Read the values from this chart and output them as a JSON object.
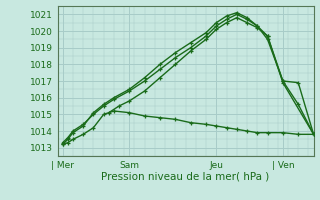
{
  "title": "",
  "xlabel": "Pression niveau de la mer( hPa )",
  "ylim": [
    1012.5,
    1021.5
  ],
  "xlim": [
    -1,
    49
  ],
  "yticks": [
    1013,
    1014,
    1015,
    1016,
    1017,
    1018,
    1019,
    1020,
    1021
  ],
  "xtick_positions": [
    0,
    13,
    30,
    43
  ],
  "xtick_labels": [
    "| Mer",
    "Sam",
    "Jeu",
    "| Ven"
  ],
  "bg_color": "#c8e8e0",
  "grid_color": "#a8ccc8",
  "line_color": "#1a6b1a",
  "spine_color": "#557755",
  "lines": [
    {
      "x": [
        0,
        1,
        2,
        4,
        6,
        8,
        10,
        13,
        16,
        19,
        22,
        25,
        28,
        30,
        32,
        34,
        36,
        38,
        40,
        43,
        46,
        49
      ],
      "y": [
        1013.2,
        1013.5,
        1013.9,
        1014.3,
        1015.1,
        1015.6,
        1016.0,
        1016.5,
        1017.2,
        1018.0,
        1018.7,
        1019.3,
        1019.9,
        1020.5,
        1020.9,
        1021.1,
        1020.8,
        1020.3,
        1019.5,
        1017.0,
        1015.6,
        1013.8
      ]
    },
    {
      "x": [
        0,
        1,
        2,
        4,
        6,
        8,
        10,
        13,
        16,
        19,
        22,
        25,
        28,
        30,
        32,
        34,
        36,
        38,
        40,
        43,
        46,
        49
      ],
      "y": [
        1013.3,
        1013.6,
        1014.0,
        1014.4,
        1015.0,
        1015.5,
        1015.9,
        1016.4,
        1017.0,
        1017.7,
        1018.4,
        1019.0,
        1019.7,
        1020.3,
        1020.7,
        1021.0,
        1020.7,
        1020.3,
        1019.7,
        1017.0,
        1016.9,
        1013.8
      ]
    },
    {
      "x": [
        9,
        11,
        13,
        16,
        19,
        22,
        25,
        28,
        30,
        32,
        34,
        36,
        38,
        40,
        43,
        49
      ],
      "y": [
        1015.1,
        1015.5,
        1015.8,
        1016.4,
        1017.2,
        1018.0,
        1018.8,
        1019.5,
        1020.1,
        1020.5,
        1020.8,
        1020.5,
        1020.2,
        1019.7,
        1016.9,
        1013.8
      ]
    },
    {
      "x": [
        0,
        1,
        2,
        4,
        6,
        8,
        10,
        13,
        16,
        19,
        22,
        25,
        28,
        30,
        32,
        34,
        36,
        38,
        40,
        43,
        46,
        49
      ],
      "y": [
        1013.2,
        1013.3,
        1013.5,
        1013.8,
        1014.2,
        1015.0,
        1015.2,
        1015.1,
        1014.9,
        1014.8,
        1014.7,
        1014.5,
        1014.4,
        1014.3,
        1014.2,
        1014.1,
        1014.0,
        1013.9,
        1013.9,
        1013.9,
        1013.8,
        1013.8
      ]
    }
  ]
}
